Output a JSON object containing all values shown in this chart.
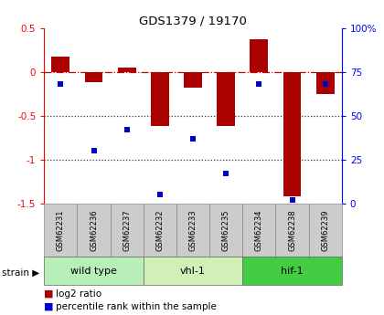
{
  "title": "GDS1379 / 19170",
  "samples": [
    "GSM62231",
    "GSM62236",
    "GSM62237",
    "GSM62232",
    "GSM62233",
    "GSM62235",
    "GSM62234",
    "GSM62238",
    "GSM62239"
  ],
  "log2_ratio": [
    0.18,
    -0.12,
    0.05,
    -0.62,
    -0.18,
    -0.62,
    0.37,
    -1.42,
    -0.25
  ],
  "percentile_rank": [
    68,
    30,
    42,
    5,
    37,
    17,
    68,
    2,
    68
  ],
  "groups": [
    {
      "label": "wild type",
      "start": 0,
      "end": 3,
      "color": "#b8eeb8"
    },
    {
      "label": "vhl-1",
      "start": 3,
      "end": 6,
      "color": "#d0f0b8"
    },
    {
      "label": "hif-1",
      "start": 6,
      "end": 9,
      "color": "#44cc44"
    }
  ],
  "ylim_left": [
    -1.5,
    0.5
  ],
  "ylim_right": [
    0,
    100
  ],
  "bar_color": "#aa0000",
  "point_color": "#0000cc",
  "bar_width": 0.55,
  "hline_color": "#cc0000",
  "dotted_color": "#333333",
  "plot_bg": "#ffffff",
  "left_yticks": [
    0.5,
    0.0,
    -0.5,
    -1.0,
    -1.5
  ],
  "left_yticklabels": [
    "0.5",
    "0",
    "-0.5",
    "-1",
    "-1.5"
  ],
  "right_yticks": [
    0,
    25,
    50,
    75,
    100
  ],
  "right_yticklabels": [
    "0",
    "25",
    "50",
    "75",
    "100%"
  ],
  "sample_box_color": "#cccccc",
  "legend_items": [
    "log2 ratio",
    "percentile rank within the sample"
  ]
}
